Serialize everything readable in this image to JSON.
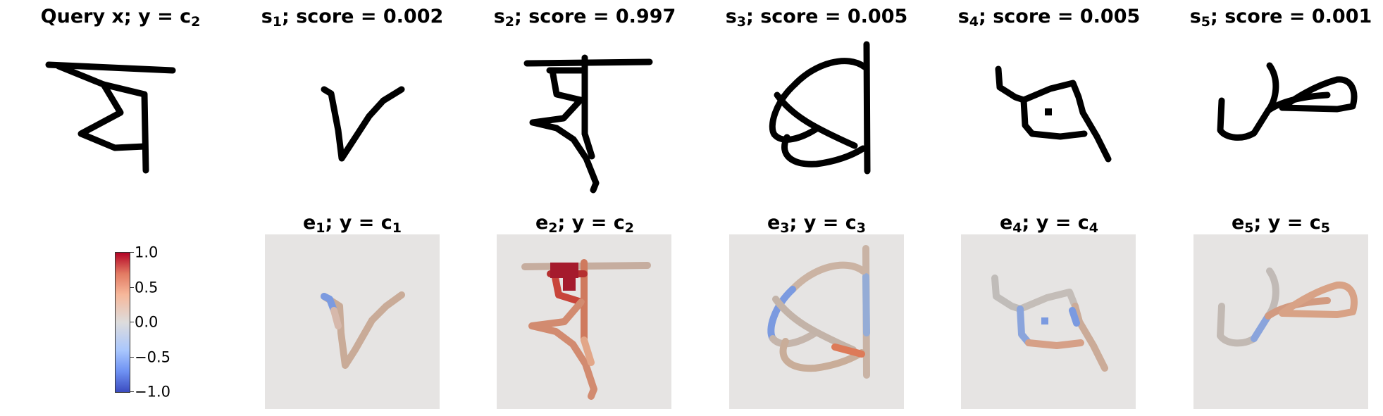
{
  "top_row": [
    {
      "var": "Query x",
      "label": "y",
      "cls": "c",
      "cls_sub": "2",
      "kind": "query"
    },
    {
      "var": "s",
      "var_sub": "1",
      "score_label": "score = 0.002"
    },
    {
      "var": "s",
      "var_sub": "2",
      "score_label": "score = 0.997"
    },
    {
      "var": "s",
      "var_sub": "3",
      "score_label": "score = 0.005"
    },
    {
      "var": "s",
      "var_sub": "4",
      "score_label": "score = 0.005"
    },
    {
      "var": "s",
      "var_sub": "5",
      "score_label": "score = 0.001"
    }
  ],
  "bottom_row": [
    {
      "var": "e",
      "var_sub": "1",
      "label": "y",
      "cls": "c",
      "cls_sub": "1"
    },
    {
      "var": "e",
      "var_sub": "2",
      "label": "y",
      "cls": "c",
      "cls_sub": "2"
    },
    {
      "var": "e",
      "var_sub": "3",
      "label": "y",
      "cls": "c",
      "cls_sub": "3"
    },
    {
      "var": "e",
      "var_sub": "4",
      "label": "y",
      "cls": "c",
      "cls_sub": "4"
    },
    {
      "var": "e",
      "var_sub": "5",
      "label": "y",
      "cls": "c",
      "cls_sub": "5"
    }
  ],
  "colorbar": {
    "ticks": [
      "1.0",
      "0.5",
      "0.0",
      "−0.5",
      "−1.0"
    ],
    "colormap": "coolwarm",
    "low_color": "#3b4cc0",
    "mid_color": "#dddcdc",
    "high_color": "#b40426"
  },
  "colors": {
    "base_stroke": "#c3b3a8",
    "background": "#e6e4e3"
  }
}
